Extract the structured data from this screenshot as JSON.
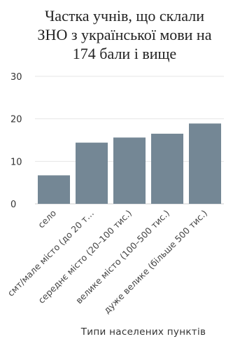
{
  "chart_data": {
    "type": "bar",
    "title_lines": [
      "Частка учнів, що склали",
      "ЗНО з української мови на",
      "174 бали і вище"
    ],
    "xlabel": "Типи населених пунктів",
    "ylabel": "",
    "categories": [
      "село",
      "смт/мале місто (до 20 т…",
      "середнє місто (20–100 тис.)",
      "велике місто (100–500 тис.)",
      "дуже велике (більше 500 тис.)"
    ],
    "values": [
      6.7,
      14.4,
      15.6,
      16.5,
      18.9
    ],
    "ylim": [
      0,
      30
    ],
    "yticks": [
      "0",
      "10",
      "20",
      "30"
    ],
    "grid": true,
    "legend": "none",
    "bar_color": "#748795"
  }
}
